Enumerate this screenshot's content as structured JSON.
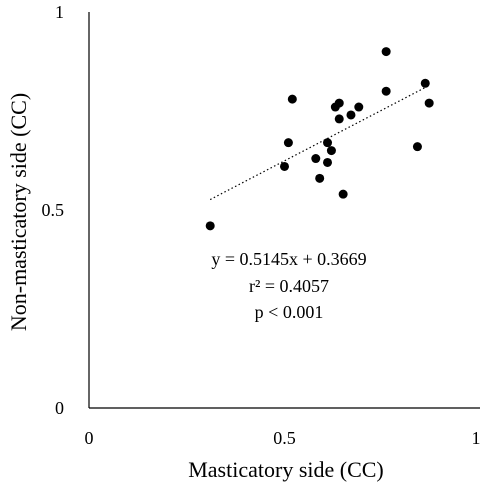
{
  "chart_data": {
    "type": "scatter",
    "xlabel": "Masticatory side (CC)",
    "ylabel": "Non-masticatory side (CC)",
    "xlim": [
      0,
      1
    ],
    "ylim": [
      0,
      1
    ],
    "x_ticks": [
      {
        "value": 0,
        "label": "0"
      },
      {
        "value": 0.5,
        "label": "0.5"
      },
      {
        "value": 1,
        "label": "1"
      }
    ],
    "y_ticks": [
      {
        "value": 0,
        "label": "0"
      },
      {
        "value": 0.5,
        "label": "0.5"
      },
      {
        "value": 1,
        "label": "1"
      }
    ],
    "grid": false,
    "marker_color": "#000000",
    "points": [
      {
        "x": 0.31,
        "y": 0.46
      },
      {
        "x": 0.5,
        "y": 0.61
      },
      {
        "x": 0.51,
        "y": 0.67
      },
      {
        "x": 0.52,
        "y": 0.78
      },
      {
        "x": 0.58,
        "y": 0.63
      },
      {
        "x": 0.59,
        "y": 0.58
      },
      {
        "x": 0.61,
        "y": 0.67
      },
      {
        "x": 0.61,
        "y": 0.62
      },
      {
        "x": 0.62,
        "y": 0.65
      },
      {
        "x": 0.63,
        "y": 0.76
      },
      {
        "x": 0.64,
        "y": 0.77
      },
      {
        "x": 0.64,
        "y": 0.73
      },
      {
        "x": 0.65,
        "y": 0.54
      },
      {
        "x": 0.67,
        "y": 0.74
      },
      {
        "x": 0.69,
        "y": 0.76
      },
      {
        "x": 0.76,
        "y": 0.9
      },
      {
        "x": 0.76,
        "y": 0.8
      },
      {
        "x": 0.84,
        "y": 0.66
      },
      {
        "x": 0.86,
        "y": 0.82
      },
      {
        "x": 0.87,
        "y": 0.77
      }
    ],
    "trendline": {
      "style": "dotted",
      "slope": 0.5145,
      "intercept": 0.3669,
      "x_range": [
        0.31,
        0.87
      ]
    },
    "annotations": [
      "y = 0.5145x + 0.3669",
      "r² = 0.4057",
      "p < 0.001"
    ]
  }
}
